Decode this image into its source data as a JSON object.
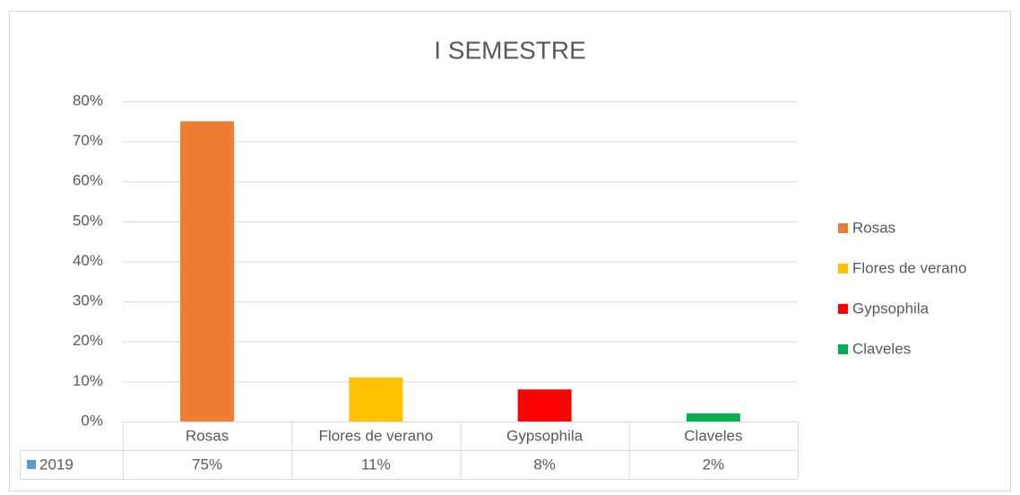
{
  "chart_data": {
    "type": "bar",
    "title": "I SEMESTRE",
    "categories": [
      "Rosas",
      "Flores de verano",
      "Gypsophila",
      "Claveles"
    ],
    "series": [
      {
        "name": "2019",
        "color": "#5B9BD5",
        "values": [
          75,
          11,
          8,
          2
        ],
        "value_labels": [
          "75%",
          "11%",
          "8%",
          "2%"
        ],
        "point_colors": [
          "#ED7D31",
          "#FFC000",
          "#FF0000",
          "#00B050"
        ]
      }
    ],
    "ylim": [
      0,
      80
    ],
    "yticks": [
      {
        "value": 0,
        "label": "0%"
      },
      {
        "value": 10,
        "label": "10%"
      },
      {
        "value": 20,
        "label": "20%"
      },
      {
        "value": 30,
        "label": "30%"
      },
      {
        "value": 40,
        "label": "40%"
      },
      {
        "value": 50,
        "label": "50%"
      },
      {
        "value": 60,
        "label": "60%"
      },
      {
        "value": 70,
        "label": "70%"
      },
      {
        "value": 80,
        "label": "80%"
      }
    ],
    "grid": true,
    "legend": "right"
  }
}
